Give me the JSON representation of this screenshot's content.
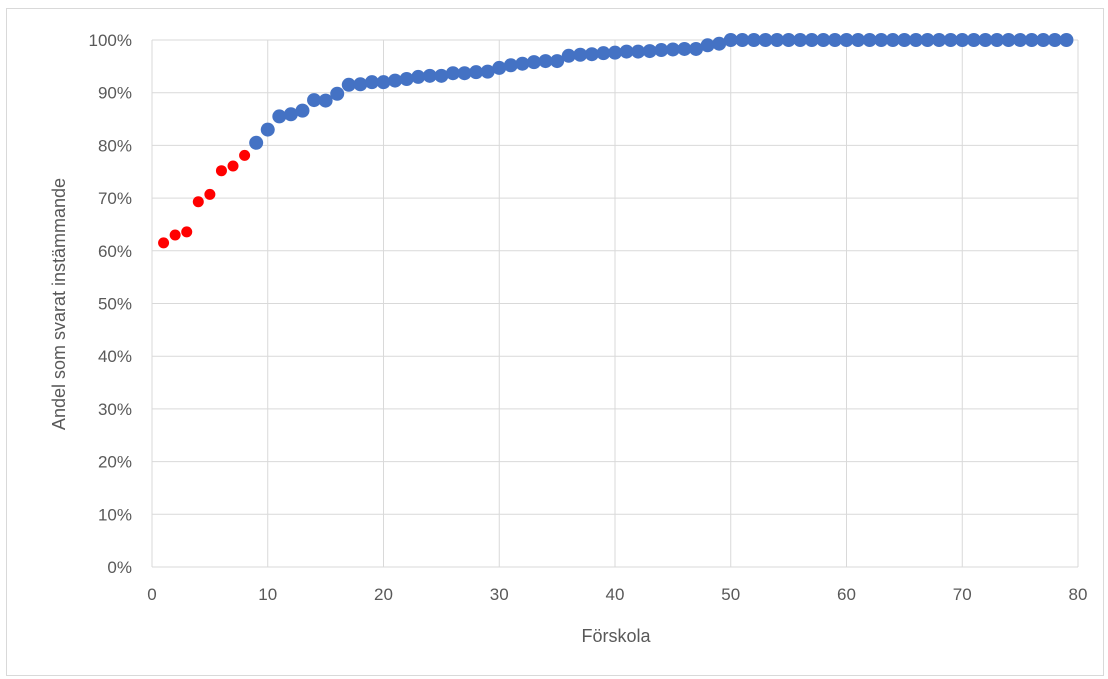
{
  "chart_data": {
    "type": "scatter",
    "title": "",
    "xlabel": "Förskola",
    "ylabel": "Andel som svarat instämmande",
    "xlim": [
      0,
      80
    ],
    "ylim": [
      0,
      100
    ],
    "x_ticks": [
      "0",
      "10",
      "20",
      "30",
      "40",
      "50",
      "60",
      "70",
      "80"
    ],
    "y_ticks": [
      "0%",
      "10%",
      "20%",
      "30%",
      "40%",
      "50%",
      "60%",
      "70%",
      "80%",
      "90%",
      "100%"
    ],
    "grid": true,
    "legend": "none",
    "series": [
      {
        "color": "#ff0000",
        "x": [
          1,
          2,
          3,
          4,
          5,
          6,
          7,
          8
        ],
        "y": [
          61.5,
          63,
          63.6,
          69.3,
          70.7,
          75.2,
          76.1,
          78.1
        ]
      },
      {
        "color": "#4472c4",
        "x": [
          9,
          10,
          11,
          12,
          13,
          14,
          15,
          16,
          17,
          18,
          19,
          20,
          21,
          22,
          23,
          24,
          25,
          26,
          27,
          28,
          29,
          30,
          31,
          32,
          33,
          34,
          35,
          36,
          37,
          38,
          39,
          40,
          41,
          42,
          43,
          44,
          45,
          46,
          47,
          48,
          49,
          50,
          51,
          52,
          53,
          54,
          55,
          56,
          57,
          58,
          59,
          60,
          61,
          62,
          63,
          64,
          65,
          66,
          67,
          68,
          69,
          70,
          71,
          72,
          73,
          74,
          75,
          76,
          77,
          78,
          79
        ],
        "y": [
          80.5,
          83,
          85.5,
          85.9,
          86.6,
          88.6,
          88.5,
          89.8,
          91.5,
          91.6,
          92,
          92,
          92.3,
          92.6,
          93,
          93.2,
          93.2,
          93.7,
          93.7,
          93.9,
          94,
          94.7,
          95.2,
          95.5,
          95.8,
          96,
          96,
          97,
          97.2,
          97.3,
          97.5,
          97.6,
          97.8,
          97.8,
          97.9,
          98.1,
          98.2,
          98.3,
          98.3,
          99,
          99.3,
          100,
          100,
          100,
          100,
          100,
          100,
          100,
          100,
          100,
          100,
          100,
          100,
          100,
          100,
          100,
          100,
          100,
          100,
          100,
          100,
          100,
          100,
          100,
          100,
          100,
          100,
          100,
          100,
          100,
          100
        ]
      }
    ]
  }
}
